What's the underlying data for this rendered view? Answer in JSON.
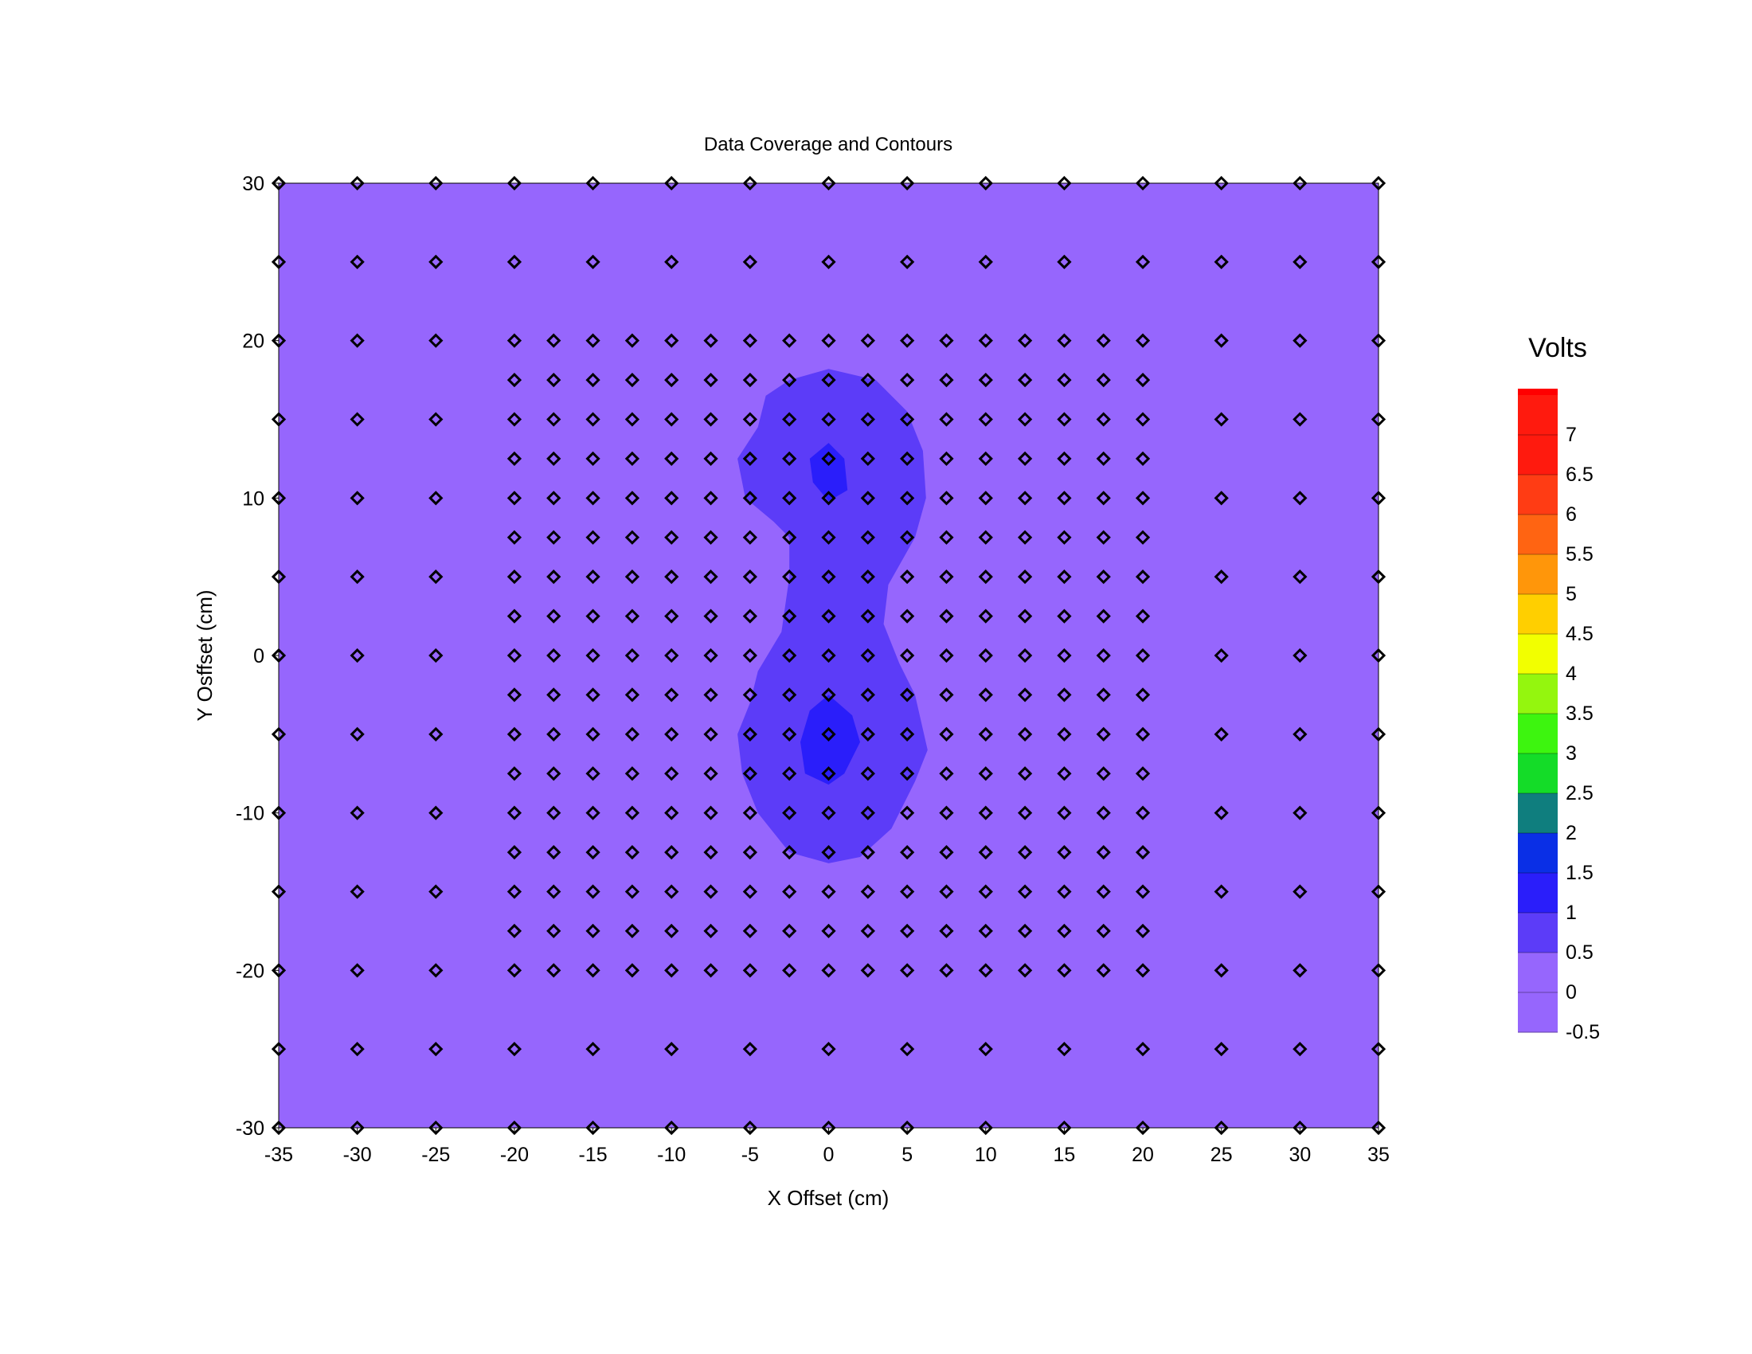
{
  "chart_data": {
    "type": "heatmap",
    "title": "Data Coverage and Contours",
    "xlabel": "X Offset (cm)",
    "ylabel": "Y Osffset (cm)",
    "xlim": [
      -35,
      35
    ],
    "ylim": [
      -30,
      30
    ],
    "x_ticks": [
      "-35",
      "-30",
      "-25",
      "-20",
      "-15",
      "-10",
      "-5",
      "0",
      "5",
      "10",
      "15",
      "20",
      "25",
      "30",
      "35"
    ],
    "y_ticks": [
      "30",
      "20",
      "10",
      "0",
      "-10",
      "-20",
      "-30"
    ],
    "background_level": "-0.5 to 0.5",
    "contour_regions": [
      {
        "level": "0.5 to 1",
        "color": "#5c3cf8",
        "boundary": [
          [
            0,
            18.2
          ],
          [
            3,
            17.5
          ],
          [
            5,
            15.5
          ],
          [
            6,
            13
          ],
          [
            6.2,
            10
          ],
          [
            5.5,
            7.5
          ],
          [
            3.8,
            4.5
          ],
          [
            3.5,
            2
          ],
          [
            4.5,
            -0.5
          ],
          [
            5.5,
            -2.5
          ],
          [
            6.3,
            -6
          ],
          [
            5.5,
            -8
          ],
          [
            4,
            -11
          ],
          [
            2,
            -12.8
          ],
          [
            0,
            -13.2
          ],
          [
            -2.5,
            -12.5
          ],
          [
            -4.5,
            -10
          ],
          [
            -5.5,
            -7.5
          ],
          [
            -5.8,
            -5
          ],
          [
            -5,
            -3
          ],
          [
            -4.5,
            -1
          ],
          [
            -3,
            1.5
          ],
          [
            -2.5,
            5
          ],
          [
            -2.5,
            7.5
          ],
          [
            -3.5,
            8.5
          ],
          [
            -5.3,
            10
          ],
          [
            -5.8,
            12.5
          ],
          [
            -4.5,
            14.5
          ],
          [
            -4,
            16.5
          ],
          [
            -2.5,
            17.5
          ]
        ]
      },
      {
        "level": "1 to 1.5",
        "color": "#2a1efa",
        "boundary": [
          [
            0,
            13.5
          ],
          [
            1,
            12.5
          ],
          [
            1.2,
            10.5
          ],
          [
            0,
            9.8
          ],
          [
            -1,
            11
          ],
          [
            -1.2,
            12.5
          ]
        ]
      },
      {
        "level": "1 to 1.5",
        "color": "#2a1efa",
        "boundary": [
          [
            0,
            -2.5
          ],
          [
            1.5,
            -3.8
          ],
          [
            2,
            -5.5
          ],
          [
            1,
            -7.5
          ],
          [
            0,
            -8.2
          ],
          [
            -1.5,
            -7.5
          ],
          [
            -1.8,
            -5.5
          ],
          [
            -1.2,
            -3.5
          ]
        ]
      }
    ],
    "measurement_points": {
      "outer_grid_spacing": 5,
      "outer_x_range": [
        -35,
        35
      ],
      "outer_y_range": [
        -30,
        30
      ],
      "inner_grid_spacing": 2.5,
      "inner_x_range": [
        -20,
        20
      ],
      "inner_y_range": [
        -20,
        20
      ]
    },
    "colorbar": {
      "title": "Volts",
      "tick_labels": [
        "7",
        "6.5",
        "6",
        "5.5",
        "5",
        "4.5",
        "4",
        "3.5",
        "3",
        "2.5",
        "2",
        "1.5",
        "1",
        "0.5",
        "0",
        "-0.5"
      ],
      "bands": [
        {
          "range": "7 to 7.5",
          "color": "#ff1a0e"
        },
        {
          "range": "6.5 to 7",
          "color": "#ff1a0e"
        },
        {
          "range": "6 to 6.5",
          "color": "#ff3c14"
        },
        {
          "range": "5.5 to 6",
          "color": "#ff6412"
        },
        {
          "range": "5 to 5.5",
          "color": "#ff960a"
        },
        {
          "range": "4.5 to 5",
          "color": "#ffcf00"
        },
        {
          "range": "4 to 4.5",
          "color": "#f2ff00"
        },
        {
          "range": "3.5 to 4",
          "color": "#94f60e"
        },
        {
          "range": "3 to 3.5",
          "color": "#3df50f"
        },
        {
          "range": "2.5 to 3",
          "color": "#14dc28"
        },
        {
          "range": "2 to 2.5",
          "color": "#0f7e7e"
        },
        {
          "range": "1.5 to 2",
          "color": "#0a2fe6"
        },
        {
          "range": "1 to 1.5",
          "color": "#2a1efa"
        },
        {
          "range": "0.5 to 1",
          "color": "#5c3cf8"
        },
        {
          "range": "0 to 0.5",
          "color": "#9666fd"
        },
        {
          "range": "-0.5 to 0",
          "color": "#9666fd"
        }
      ],
      "top_color": "#ff0000"
    }
  }
}
